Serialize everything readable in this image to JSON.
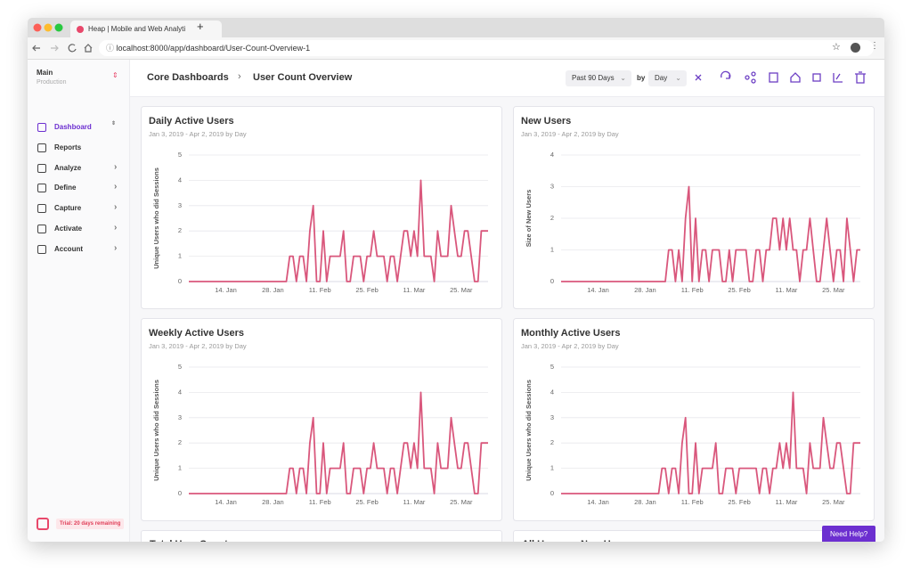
{
  "browser": {
    "tab_title": "Heap | Mobile and Web Analyti",
    "url": "localhost:8000/app/dashboard/User-Count-Overview-1"
  },
  "sidebar": {
    "project": "Main",
    "environment": "Production",
    "nav": [
      "Dashboard",
      "Reports",
      "Analyze",
      "Define",
      "Capture",
      "Activate",
      "Account"
    ],
    "trial": "Trial: 20 days remaining"
  },
  "header": {
    "breadcrumb": "Core Dashboards",
    "title": "User Count Overview",
    "range": "Past 90 Days",
    "by": "by",
    "granularity": "Day"
  },
  "chart_data": [
    {
      "type": "line",
      "title": "Daily Active Users",
      "subtitle": "Jan 3, 2019 - Apr 2, 2019 by Day",
      "y_label": "Unique Users who did Sessions",
      "color": "#d9577c",
      "grid": true,
      "x": [
        "2019-01-03",
        "2019-01-04",
        "2019-01-05",
        "2019-01-06",
        "2019-01-07",
        "2019-01-08",
        "2019-01-09",
        "2019-01-10",
        "2019-01-11",
        "2019-01-12",
        "2019-01-13",
        "2019-01-14",
        "2019-01-15",
        "2019-01-16",
        "2019-01-17",
        "2019-01-18",
        "2019-01-19",
        "2019-01-20",
        "2019-01-21",
        "2019-01-22",
        "2019-01-23",
        "2019-01-24",
        "2019-01-25",
        "2019-01-26",
        "2019-01-27",
        "2019-01-28",
        "2019-01-29",
        "2019-01-30",
        "2019-01-31",
        "2019-02-01",
        "2019-02-02",
        "2019-02-03",
        "2019-02-04",
        "2019-02-05",
        "2019-02-06",
        "2019-02-07",
        "2019-02-08",
        "2019-02-09",
        "2019-02-10",
        "2019-02-11",
        "2019-02-12",
        "2019-02-13",
        "2019-02-14",
        "2019-02-15",
        "2019-02-16",
        "2019-02-17",
        "2019-02-18",
        "2019-02-19",
        "2019-02-20",
        "2019-02-21",
        "2019-02-22",
        "2019-02-23",
        "2019-02-24",
        "2019-02-25",
        "2019-02-26",
        "2019-02-27",
        "2019-02-28",
        "2019-03-01",
        "2019-03-02",
        "2019-03-03",
        "2019-03-04",
        "2019-03-05",
        "2019-03-06",
        "2019-03-07",
        "2019-03-08",
        "2019-03-09",
        "2019-03-10",
        "2019-03-11",
        "2019-03-12",
        "2019-03-13",
        "2019-03-14",
        "2019-03-15",
        "2019-03-16",
        "2019-03-17",
        "2019-03-18",
        "2019-03-19",
        "2019-03-20",
        "2019-03-21",
        "2019-03-22",
        "2019-03-23",
        "2019-03-24",
        "2019-03-25",
        "2019-03-26",
        "2019-03-27",
        "2019-03-28",
        "2019-03-29",
        "2019-03-30",
        "2019-03-31",
        "2019-04-01",
        "2019-04-02"
      ],
      "values": [
        0,
        0,
        0,
        0,
        0,
        0,
        0,
        0,
        0,
        0,
        0,
        0,
        0,
        0,
        0,
        0,
        0,
        0,
        0,
        0,
        0,
        0,
        0,
        0,
        0,
        0,
        0,
        0,
        0,
        0,
        1,
        1,
        0,
        1,
        1,
        0,
        2,
        3,
        0,
        0,
        2,
        0,
        1,
        1,
        1,
        1,
        2,
        0,
        0,
        1,
        1,
        1,
        0,
        1,
        1,
        2,
        1,
        1,
        1,
        0,
        1,
        1,
        0,
        1,
        2,
        2,
        1,
        2,
        1,
        4,
        1,
        1,
        1,
        0,
        2,
        1,
        1,
        1,
        3,
        2,
        1,
        1,
        2,
        2,
        1,
        0,
        0,
        2,
        2,
        2
      ],
      "xlim": [
        "2019-01-03",
        "2019-04-02"
      ],
      "xticks": [
        {
          "value": "2019-01-14",
          "label": "14. Jan"
        },
        {
          "value": "2019-01-28",
          "label": "28. Jan"
        },
        {
          "value": "2019-02-11",
          "label": "11. Feb"
        },
        {
          "value": "2019-02-25",
          "label": "25. Feb"
        },
        {
          "value": "2019-03-11",
          "label": "11. Mar"
        },
        {
          "value": "2019-03-25",
          "label": "25. Mar"
        }
      ],
      "ylim": [
        0,
        5
      ],
      "yticks": [
        0,
        1,
        2,
        3,
        4,
        5
      ]
    },
    {
      "type": "line",
      "title": "New Users",
      "subtitle": "Jan 3, 2019 - Apr 2, 2019 by Day",
      "y_label": "Size of New Users",
      "color": "#d9577c",
      "grid": true,
      "x": [
        "2019-01-03",
        "2019-01-04",
        "2019-01-05",
        "2019-01-06",
        "2019-01-07",
        "2019-01-08",
        "2019-01-09",
        "2019-01-10",
        "2019-01-11",
        "2019-01-12",
        "2019-01-13",
        "2019-01-14",
        "2019-01-15",
        "2019-01-16",
        "2019-01-17",
        "2019-01-18",
        "2019-01-19",
        "2019-01-20",
        "2019-01-21",
        "2019-01-22",
        "2019-01-23",
        "2019-01-24",
        "2019-01-25",
        "2019-01-26",
        "2019-01-27",
        "2019-01-28",
        "2019-01-29",
        "2019-01-30",
        "2019-01-31",
        "2019-02-01",
        "2019-02-02",
        "2019-02-03",
        "2019-02-04",
        "2019-02-05",
        "2019-02-06",
        "2019-02-07",
        "2019-02-08",
        "2019-02-09",
        "2019-02-10",
        "2019-02-11",
        "2019-02-12",
        "2019-02-13",
        "2019-02-14",
        "2019-02-15",
        "2019-02-16",
        "2019-02-17",
        "2019-02-18",
        "2019-02-19",
        "2019-02-20",
        "2019-02-21",
        "2019-02-22",
        "2019-02-23",
        "2019-02-24",
        "2019-02-25",
        "2019-02-26",
        "2019-02-27",
        "2019-02-28",
        "2019-03-01",
        "2019-03-02",
        "2019-03-03",
        "2019-03-04",
        "2019-03-05",
        "2019-03-06",
        "2019-03-07",
        "2019-03-08",
        "2019-03-09",
        "2019-03-10",
        "2019-03-11",
        "2019-03-12",
        "2019-03-13",
        "2019-03-14",
        "2019-03-15",
        "2019-03-16",
        "2019-03-17",
        "2019-03-18",
        "2019-03-19",
        "2019-03-20",
        "2019-03-21",
        "2019-03-22",
        "2019-03-23",
        "2019-03-24",
        "2019-03-25",
        "2019-03-26",
        "2019-03-27",
        "2019-03-28",
        "2019-03-29",
        "2019-03-30",
        "2019-03-31",
        "2019-04-01",
        "2019-04-02"
      ],
      "values": [
        0,
        0,
        0,
        0,
        0,
        0,
        0,
        0,
        0,
        0,
        0,
        0,
        0,
        0,
        0,
        0,
        0,
        0,
        0,
        0,
        0,
        0,
        0,
        0,
        0,
        0,
        0,
        0,
        0,
        0,
        0,
        0,
        1,
        1,
        0,
        1,
        0,
        2,
        3,
        0,
        2,
        0,
        1,
        1,
        0,
        1,
        1,
        1,
        0,
        0,
        1,
        0,
        1,
        1,
        1,
        1,
        0,
        0,
        1,
        1,
        0,
        1,
        1,
        2,
        2,
        1,
        2,
        1,
        2,
        1,
        1,
        0,
        1,
        1,
        2,
        1,
        0,
        0,
        1,
        2,
        1,
        0,
        1,
        1,
        0,
        2,
        1,
        0,
        1,
        1
      ],
      "xlim": [
        "2019-01-03",
        "2019-04-02"
      ],
      "xticks": [
        {
          "value": "2019-01-14",
          "label": "14. Jan"
        },
        {
          "value": "2019-01-28",
          "label": "28. Jan"
        },
        {
          "value": "2019-02-11",
          "label": "11. Feb"
        },
        {
          "value": "2019-02-25",
          "label": "25. Feb"
        },
        {
          "value": "2019-03-11",
          "label": "11. Mar"
        },
        {
          "value": "2019-03-25",
          "label": "25. Mar"
        }
      ],
      "ylim": [
        0,
        4
      ],
      "yticks": [
        0,
        1,
        2,
        3,
        4
      ]
    },
    {
      "type": "line",
      "title": "Weekly Active Users",
      "subtitle": "Jan 3, 2019 - Apr 2, 2019 by Day",
      "y_label": "Unique Users who did Sessions",
      "color": "#d9577c",
      "grid": true,
      "x": [
        "2019-01-03",
        "2019-01-04",
        "2019-01-05",
        "2019-01-06",
        "2019-01-07",
        "2019-01-08",
        "2019-01-09",
        "2019-01-10",
        "2019-01-11",
        "2019-01-12",
        "2019-01-13",
        "2019-01-14",
        "2019-01-15",
        "2019-01-16",
        "2019-01-17",
        "2019-01-18",
        "2019-01-19",
        "2019-01-20",
        "2019-01-21",
        "2019-01-22",
        "2019-01-23",
        "2019-01-24",
        "2019-01-25",
        "2019-01-26",
        "2019-01-27",
        "2019-01-28",
        "2019-01-29",
        "2019-01-30",
        "2019-01-31",
        "2019-02-01",
        "2019-02-02",
        "2019-02-03",
        "2019-02-04",
        "2019-02-05",
        "2019-02-06",
        "2019-02-07",
        "2019-02-08",
        "2019-02-09",
        "2019-02-10",
        "2019-02-11",
        "2019-02-12",
        "2019-02-13",
        "2019-02-14",
        "2019-02-15",
        "2019-02-16",
        "2019-02-17",
        "2019-02-18",
        "2019-02-19",
        "2019-02-20",
        "2019-02-21",
        "2019-02-22",
        "2019-02-23",
        "2019-02-24",
        "2019-02-25",
        "2019-02-26",
        "2019-02-27",
        "2019-02-28",
        "2019-03-01",
        "2019-03-02",
        "2019-03-03",
        "2019-03-04",
        "2019-03-05",
        "2019-03-06",
        "2019-03-07",
        "2019-03-08",
        "2019-03-09",
        "2019-03-10",
        "2019-03-11",
        "2019-03-12",
        "2019-03-13",
        "2019-03-14",
        "2019-03-15",
        "2019-03-16",
        "2019-03-17",
        "2019-03-18",
        "2019-03-19",
        "2019-03-20",
        "2019-03-21",
        "2019-03-22",
        "2019-03-23",
        "2019-03-24",
        "2019-03-25",
        "2019-03-26",
        "2019-03-27",
        "2019-03-28",
        "2019-03-29",
        "2019-03-30",
        "2019-03-31",
        "2019-04-01",
        "2019-04-02"
      ],
      "values": [
        0,
        0,
        0,
        0,
        0,
        0,
        0,
        0,
        0,
        0,
        0,
        0,
        0,
        0,
        0,
        0,
        0,
        0,
        0,
        0,
        0,
        0,
        0,
        0,
        0,
        0,
        0,
        0,
        0,
        0,
        1,
        1,
        0,
        1,
        1,
        0,
        2,
        3,
        0,
        0,
        2,
        0,
        1,
        1,
        1,
        1,
        2,
        0,
        0,
        1,
        1,
        1,
        0,
        1,
        1,
        2,
        1,
        1,
        1,
        0,
        1,
        1,
        0,
        1,
        2,
        2,
        1,
        2,
        1,
        4,
        1,
        1,
        1,
        0,
        2,
        1,
        1,
        1,
        3,
        2,
        1,
        1,
        2,
        2,
        1,
        0,
        0,
        2,
        2,
        2
      ],
      "xlim": [
        "2019-01-03",
        "2019-04-02"
      ],
      "xticks": [
        {
          "value": "2019-01-14",
          "label": "14. Jan"
        },
        {
          "value": "2019-01-28",
          "label": "28. Jan"
        },
        {
          "value": "2019-02-11",
          "label": "11. Feb"
        },
        {
          "value": "2019-02-25",
          "label": "25. Feb"
        },
        {
          "value": "2019-03-11",
          "label": "11. Mar"
        },
        {
          "value": "2019-03-25",
          "label": "25. Mar"
        }
      ],
      "ylim": [
        0,
        5
      ],
      "yticks": [
        0,
        1,
        2,
        3,
        4,
        5
      ]
    },
    {
      "type": "line",
      "title": "Monthly Active Users",
      "subtitle": "Jan 3, 2019 - Apr 2, 2019 by Day",
      "y_label": "Unique Users who did Sessions",
      "color": "#d9577c",
      "grid": true,
      "x": [
        "2019-01-03",
        "2019-01-04",
        "2019-01-05",
        "2019-01-06",
        "2019-01-07",
        "2019-01-08",
        "2019-01-09",
        "2019-01-10",
        "2019-01-11",
        "2019-01-12",
        "2019-01-13",
        "2019-01-14",
        "2019-01-15",
        "2019-01-16",
        "2019-01-17",
        "2019-01-18",
        "2019-01-19",
        "2019-01-20",
        "2019-01-21",
        "2019-01-22",
        "2019-01-23",
        "2019-01-24",
        "2019-01-25",
        "2019-01-26",
        "2019-01-27",
        "2019-01-28",
        "2019-01-29",
        "2019-01-30",
        "2019-01-31",
        "2019-02-01",
        "2019-02-02",
        "2019-02-03",
        "2019-02-04",
        "2019-02-05",
        "2019-02-06",
        "2019-02-07",
        "2019-02-08",
        "2019-02-09",
        "2019-02-10",
        "2019-02-11",
        "2019-02-12",
        "2019-02-13",
        "2019-02-14",
        "2019-02-15",
        "2019-02-16",
        "2019-02-17",
        "2019-02-18",
        "2019-02-19",
        "2019-02-20",
        "2019-02-21",
        "2019-02-22",
        "2019-02-23",
        "2019-02-24",
        "2019-02-25",
        "2019-02-26",
        "2019-02-27",
        "2019-02-28",
        "2019-03-01",
        "2019-03-02",
        "2019-03-03",
        "2019-03-04",
        "2019-03-05",
        "2019-03-06",
        "2019-03-07",
        "2019-03-08",
        "2019-03-09",
        "2019-03-10",
        "2019-03-11",
        "2019-03-12",
        "2019-03-13",
        "2019-03-14",
        "2019-03-15",
        "2019-03-16",
        "2019-03-17",
        "2019-03-18",
        "2019-03-19",
        "2019-03-20",
        "2019-03-21",
        "2019-03-22",
        "2019-03-23",
        "2019-03-24",
        "2019-03-25",
        "2019-03-26",
        "2019-03-27",
        "2019-03-28",
        "2019-03-29",
        "2019-03-30",
        "2019-03-31",
        "2019-04-01",
        "2019-04-02"
      ],
      "values": [
        0,
        0,
        0,
        0,
        0,
        0,
        0,
        0,
        0,
        0,
        0,
        0,
        0,
        0,
        0,
        0,
        0,
        0,
        0,
        0,
        0,
        0,
        0,
        0,
        0,
        0,
        0,
        0,
        0,
        0,
        1,
        1,
        0,
        1,
        1,
        0,
        2,
        3,
        0,
        0,
        2,
        0,
        1,
        1,
        1,
        1,
        2,
        0,
        0,
        1,
        1,
        1,
        0,
        1,
        1,
        1,
        1,
        1,
        1,
        0,
        1,
        1,
        0,
        1,
        1,
        2,
        1,
        2,
        1,
        4,
        1,
        1,
        1,
        0,
        2,
        1,
        1,
        1,
        3,
        2,
        1,
        1,
        2,
        2,
        1,
        0,
        0,
        2,
        2,
        2
      ],
      "xlim": [
        "2019-01-03",
        "2019-04-02"
      ],
      "xticks": [
        {
          "value": "2019-01-14",
          "label": "14. Jan"
        },
        {
          "value": "2019-01-28",
          "label": "28. Jan"
        },
        {
          "value": "2019-02-11",
          "label": "11. Feb"
        },
        {
          "value": "2019-02-25",
          "label": "25. Feb"
        },
        {
          "value": "2019-03-11",
          "label": "11. Mar"
        },
        {
          "value": "2019-03-25",
          "label": "25. Mar"
        }
      ],
      "ylim": [
        0,
        5
      ],
      "yticks": [
        0,
        1,
        2,
        3,
        4,
        5
      ]
    }
  ],
  "partial_cards": [
    "Total User Count",
    "All Users vs New Users"
  ],
  "help_button": "Need Help?"
}
